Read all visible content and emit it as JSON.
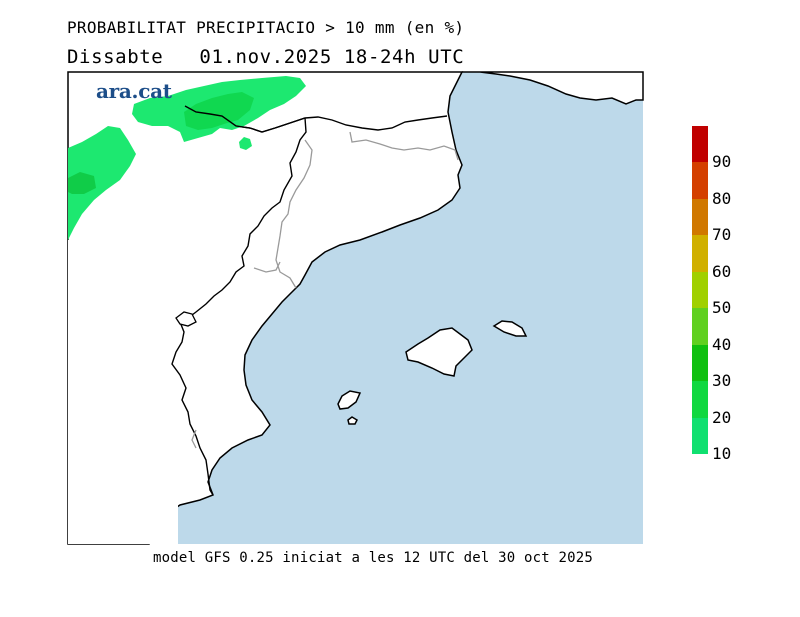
{
  "header": {
    "title": "PROBABILITAT PRECIPITACIO > 10 mm (en %)",
    "subtitle": "Dissabte   01.nov.2025 18-24h UTC"
  },
  "logo": {
    "text": "ara.cat"
  },
  "footer": {
    "text": "model GFS 0.25 iniciat a les 12 UTC del 30 oct 2025"
  },
  "legend": {
    "labels": [
      "90",
      "80",
      "70",
      "60",
      "50",
      "40",
      "30",
      "20",
      "10"
    ],
    "colors": [
      "#c00000",
      "#d44000",
      "#d07800",
      "#d0b000",
      "#a0d000",
      "#60d020",
      "#10c010",
      "#10d840",
      "#10e070"
    ]
  },
  "map": {
    "sea_color": "#bdd9ea",
    "land_color": "#ffffff",
    "precip_color": "#1de870",
    "precip_dark_color": "#10d850"
  }
}
